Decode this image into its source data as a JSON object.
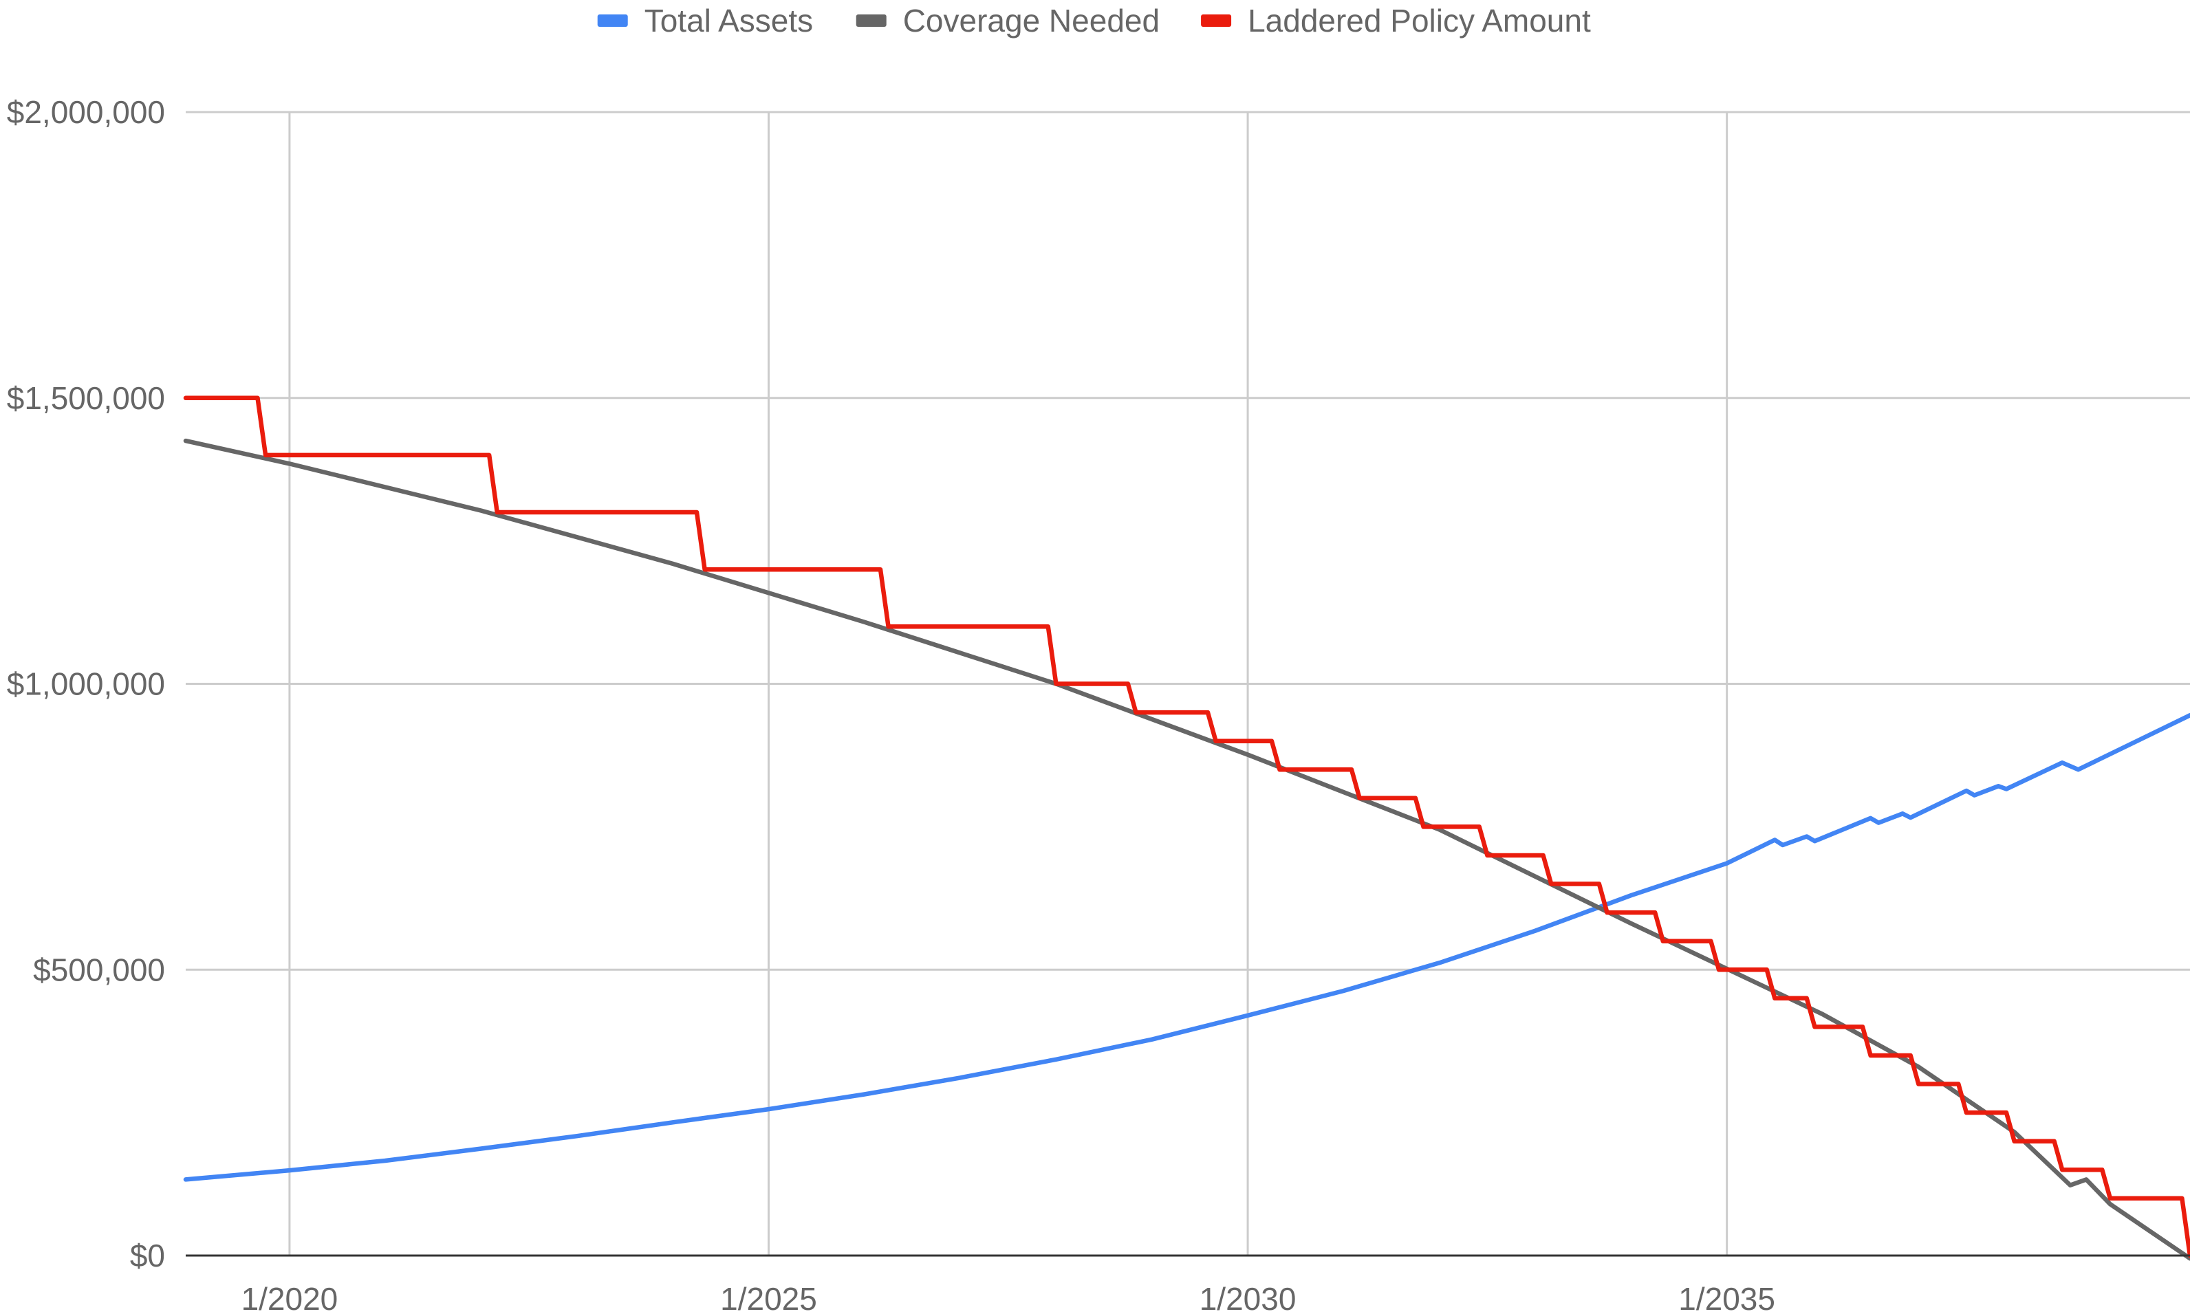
{
  "chart_data": {
    "type": "line",
    "title": "",
    "xlabel": "",
    "ylabel": "",
    "x_range": [
      "2018-12",
      "2039-11"
    ],
    "ylim": [
      0,
      2000000
    ],
    "y_ticks": [
      {
        "value": 0,
        "label": "$0"
      },
      {
        "value": 500000,
        "label": "$500,000"
      },
      {
        "value": 1000000,
        "label": "$1,000,000"
      },
      {
        "value": 1500000,
        "label": "$1,500,000"
      },
      {
        "value": 2000000,
        "label": "$2,000,000"
      }
    ],
    "x_ticks": [
      {
        "value": "2020-01",
        "label": "1/2020"
      },
      {
        "value": "2025-01",
        "label": "1/2025"
      },
      {
        "value": "2030-01",
        "label": "1/2030"
      },
      {
        "value": "2035-01",
        "label": "1/2035"
      }
    ],
    "grid": true,
    "legend_position": "top",
    "series": [
      {
        "name": "Total Assets",
        "color": "#4285f4",
        "points": [
          [
            "2018-12",
            133000
          ],
          [
            "2020-01",
            149000
          ],
          [
            "2021-01",
            166000
          ],
          [
            "2022-01",
            187000
          ],
          [
            "2023-01",
            209000
          ],
          [
            "2024-01",
            233000
          ],
          [
            "2025-01",
            256000
          ],
          [
            "2026-01",
            282000
          ],
          [
            "2027-01",
            311000
          ],
          [
            "2028-01",
            343000
          ],
          [
            "2029-01",
            378000
          ],
          [
            "2030-01",
            420000
          ],
          [
            "2031-01",
            463000
          ],
          [
            "2032-01",
            512000
          ],
          [
            "2033-01",
            568000
          ],
          [
            "2034-01",
            630000
          ],
          [
            "2035-01",
            686000
          ],
          [
            "2035-07",
            727000
          ],
          [
            "2035-08",
            718000
          ],
          [
            "2035-11",
            733000
          ],
          [
            "2036-00",
            725000
          ],
          [
            "2036-07",
            765000
          ],
          [
            "2036-08",
            757000
          ],
          [
            "2036-11",
            773000
          ],
          [
            "2037-00",
            766000
          ],
          [
            "2037-07",
            813000
          ],
          [
            "2037-08",
            805000
          ],
          [
            "2037-11",
            821000
          ],
          [
            "2038-00",
            816000
          ],
          [
            "2038-07",
            862000
          ],
          [
            "2038-09",
            850000
          ],
          [
            "2039-11",
            945000
          ]
        ]
      },
      {
        "name": "Coverage Needed",
        "color": "#666666",
        "points": [
          [
            "2018-12",
            1425000
          ],
          [
            "2020-01",
            1385000
          ],
          [
            "2022-01",
            1303000
          ],
          [
            "2024-01",
            1210000
          ],
          [
            "2026-01",
            1108000
          ],
          [
            "2028-01",
            1000000
          ],
          [
            "2030-01",
            876000
          ],
          [
            "2032-01",
            745000
          ],
          [
            "2034-01",
            581000
          ],
          [
            "2036-01",
            422000
          ],
          [
            "2037-01",
            330000
          ],
          [
            "2038-01",
            216000
          ],
          [
            "2038-08",
            123000
          ],
          [
            "2038-10",
            133000
          ],
          [
            "2039-01",
            90000
          ],
          [
            "2039-11",
            -5000
          ]
        ]
      },
      {
        "name": "Laddered Policy Amount",
        "color": "#ea1c0d",
        "points": [
          [
            "2018-12",
            1500000
          ],
          [
            "2019-09",
            1500000
          ],
          [
            "2019-10",
            1400000
          ],
          [
            "2022-02",
            1400000
          ],
          [
            "2022-03",
            1300000
          ],
          [
            "2024-04",
            1300000
          ],
          [
            "2024-05",
            1200000
          ],
          [
            "2026-03",
            1200000
          ],
          [
            "2026-04",
            1100000
          ],
          [
            "2027-12",
            1100000
          ],
          [
            "2028-01",
            1000000
          ],
          [
            "2028-10",
            1000000
          ],
          [
            "2028-11",
            950000
          ],
          [
            "2029-08",
            950000
          ],
          [
            "2029-09",
            900000
          ],
          [
            "2030-04",
            900000
          ],
          [
            "2030-05",
            850000
          ],
          [
            "2031-02",
            850000
          ],
          [
            "2031-03",
            800000
          ],
          [
            "2031-10",
            800000
          ],
          [
            "2031-11",
            750000
          ],
          [
            "2032-06",
            750000
          ],
          [
            "2032-07",
            700000
          ],
          [
            "2033-02",
            700000
          ],
          [
            "2033-03",
            650000
          ],
          [
            "2033-09",
            650000
          ],
          [
            "2033-10",
            600000
          ],
          [
            "2034-04",
            600000
          ],
          [
            "2034-05",
            550000
          ],
          [
            "2034-11",
            550000
          ],
          [
            "2035-00",
            500000
          ],
          [
            "2035-06",
            500000
          ],
          [
            "2035-07",
            450000
          ],
          [
            "2035-11",
            450000
          ],
          [
            "2036-00",
            400000
          ],
          [
            "2036-06",
            400000
          ],
          [
            "2036-07",
            350000
          ],
          [
            "2037-00",
            350000
          ],
          [
            "2037-01",
            300000
          ],
          [
            "2037-06",
            300000
          ],
          [
            "2037-07",
            250000
          ],
          [
            "2038-00",
            250000
          ],
          [
            "2038-01",
            200000
          ],
          [
            "2038-06",
            200000
          ],
          [
            "2038-07",
            150000
          ],
          [
            "2039-00",
            150000
          ],
          [
            "2039-01",
            100000
          ],
          [
            "2039-10",
            100000
          ],
          [
            "2039-11",
            0
          ]
        ]
      }
    ]
  }
}
